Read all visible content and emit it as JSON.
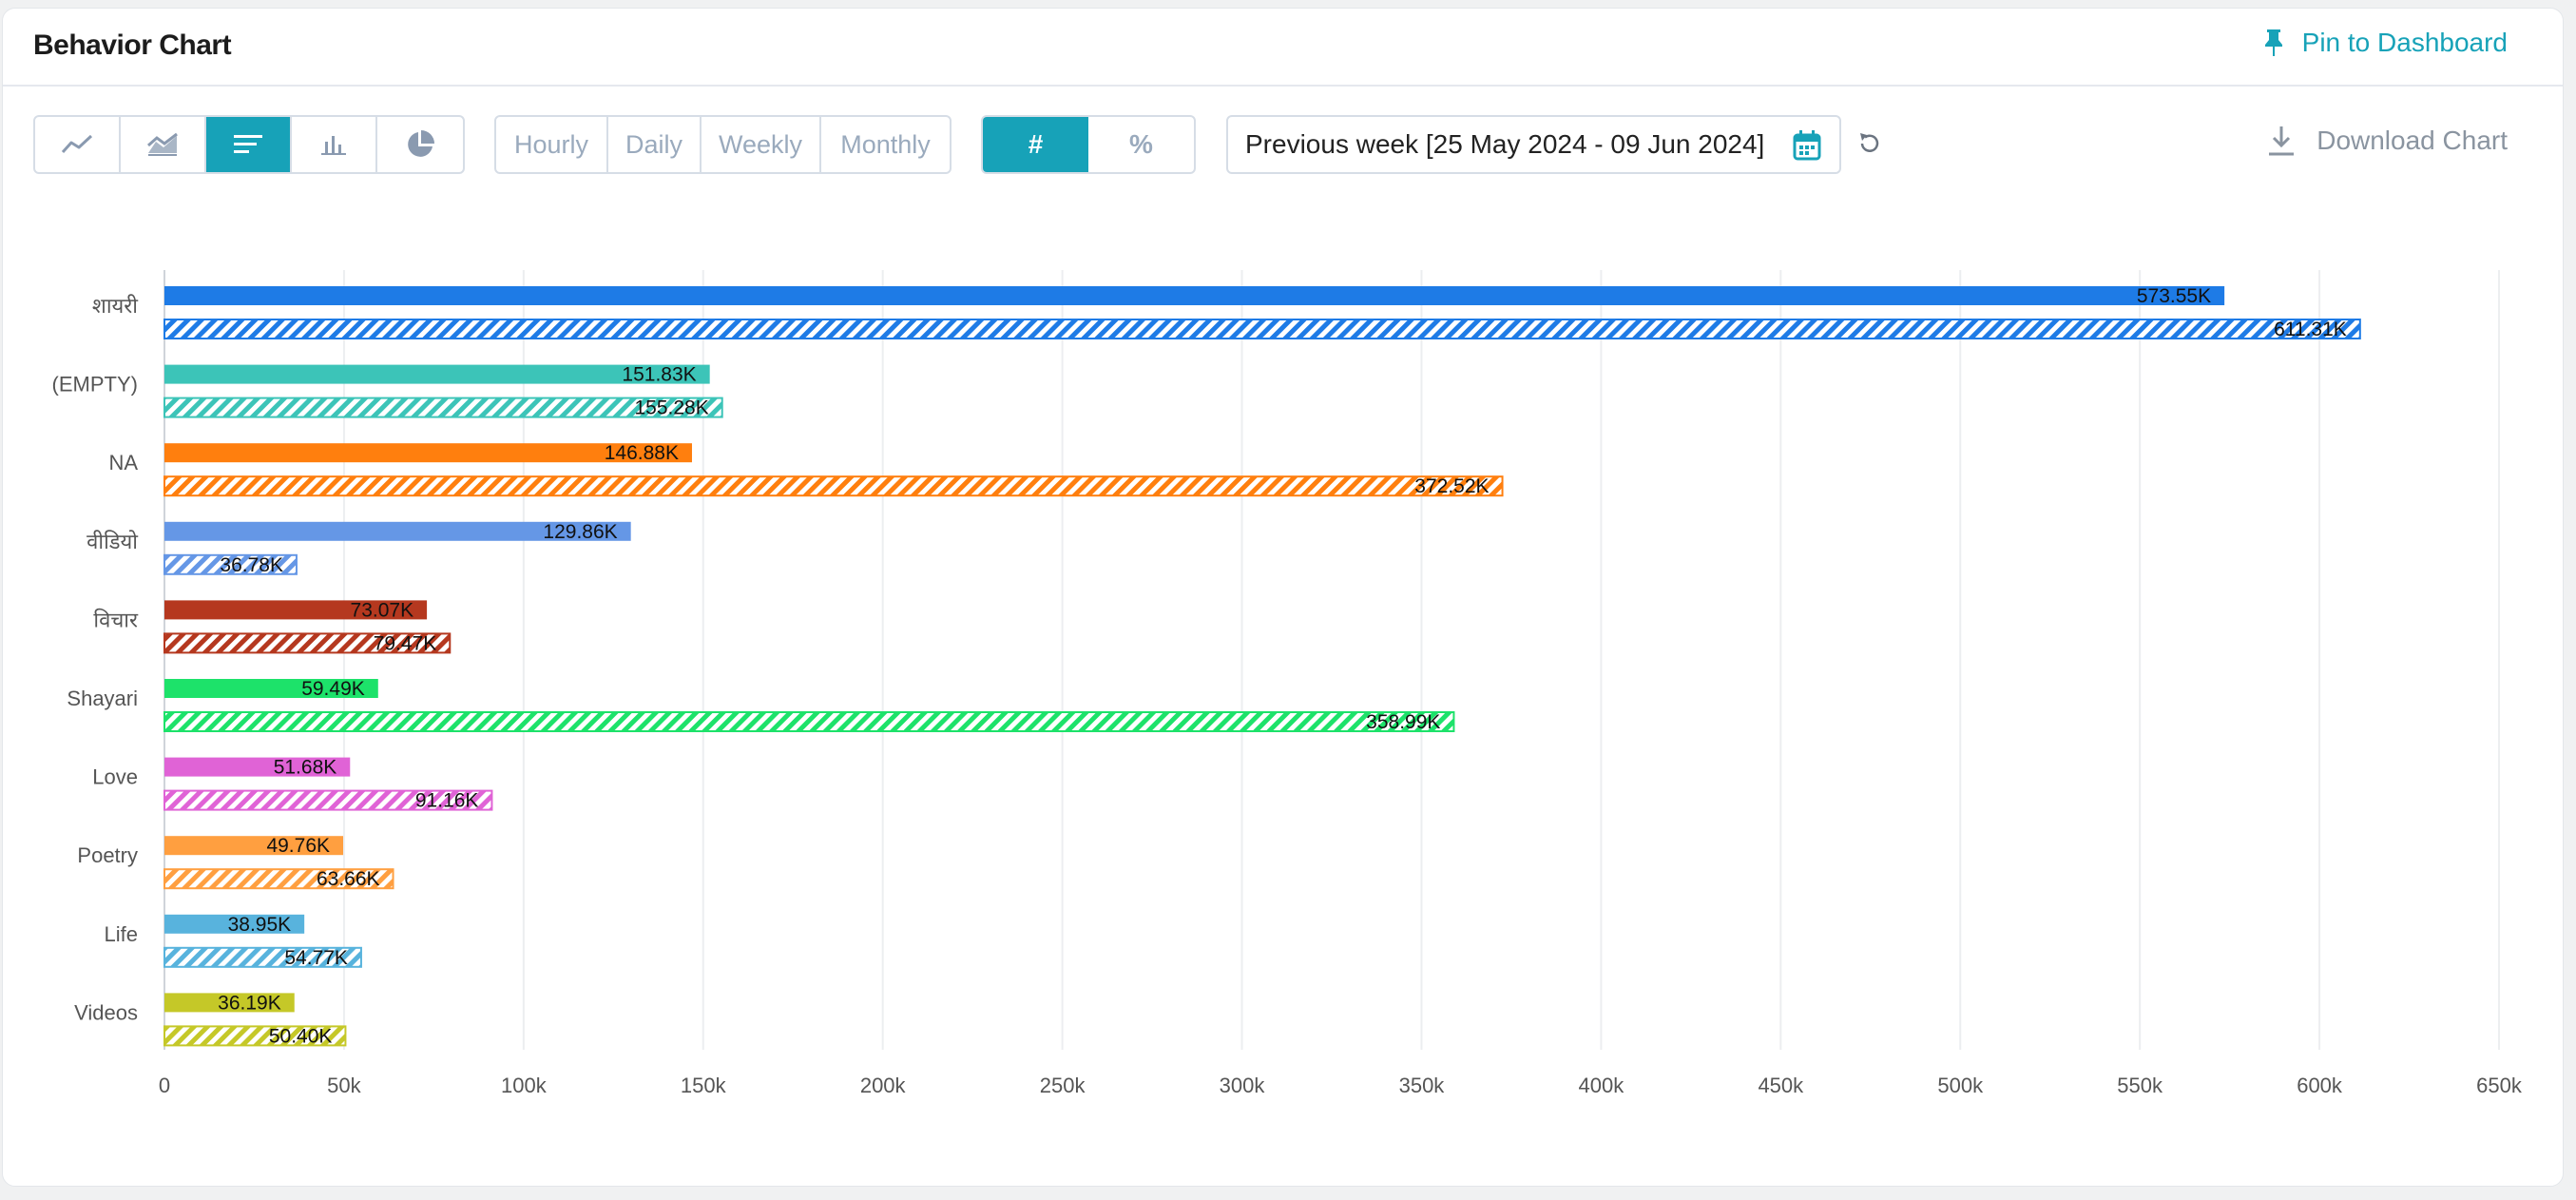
{
  "header": {
    "title": "Behavior Chart",
    "pin_label": "Pin to Dashboard"
  },
  "toolbar": {
    "chart_types": [
      {
        "icon": "line-chart-icon",
        "active": false
      },
      {
        "icon": "area-chart-icon",
        "active": false
      },
      {
        "icon": "horizontal-bar-chart-icon",
        "active": true
      },
      {
        "icon": "vertical-bar-chart-icon",
        "active": false
      },
      {
        "icon": "pie-chart-icon",
        "active": false
      }
    ],
    "periods": [
      "Hourly",
      "Daily",
      "Weekly",
      "Monthly"
    ],
    "modes": [
      "#",
      "%"
    ],
    "active_mode": "#",
    "date_range": "Previous week [25 May 2024 - 09 Jun 2024]",
    "download_label": "Download Chart"
  },
  "colors": {
    "accent": "#17a2b8"
  },
  "chart_data": {
    "type": "bar",
    "orientation": "horizontal",
    "categories": [
      "शायरी",
      "(EMPTY)",
      "NA",
      "वीडियो",
      "विचार",
      "Shayari",
      "Love",
      "Poetry",
      "Life",
      "Videos"
    ],
    "series": [
      {
        "style": "solid",
        "values": [
          573.55,
          151.83,
          146.88,
          129.86,
          73.07,
          59.49,
          51.68,
          49.76,
          38.95,
          36.19
        ],
        "labels": [
          "573.55K",
          "151.83K",
          "146.88K",
          "129.86K",
          "73.07K",
          "59.49K",
          "51.68K",
          "49.76K",
          "38.95K",
          "36.19K"
        ]
      },
      {
        "style": "hatched",
        "values": [
          611.31,
          155.28,
          372.52,
          36.78,
          79.47,
          358.99,
          91.16,
          63.66,
          54.77,
          50.4
        ],
        "labels": [
          "611.31K",
          "155.28K",
          "372.52K",
          "36.78K",
          "79.47K",
          "358.99K",
          "91.16K",
          "63.66K",
          "54.77K",
          "50.40K"
        ]
      }
    ],
    "category_colors": [
      "#1e7be6",
      "#3cc4b8",
      "#ff7f0e",
      "#6597e6",
      "#b5381f",
      "#1de26a",
      "#e063d6",
      "#ff9f40",
      "#58b3dd",
      "#c5c828"
    ],
    "xlim": [
      0,
      650
    ],
    "xticks": [
      "0",
      "50k",
      "100k",
      "150k",
      "200k",
      "250k",
      "300k",
      "350k",
      "400k",
      "450k",
      "500k",
      "550k",
      "600k",
      "650k"
    ],
    "grid": true,
    "legend": "none"
  }
}
